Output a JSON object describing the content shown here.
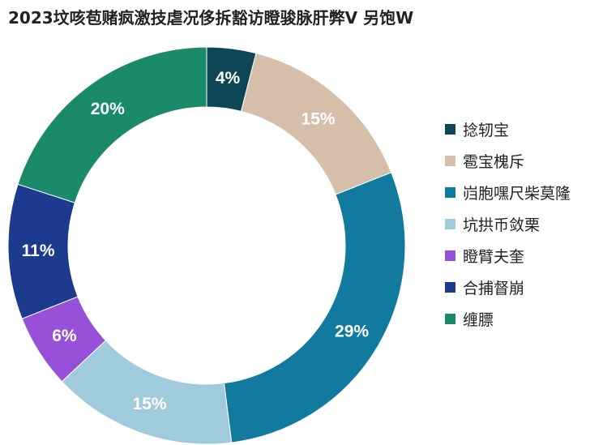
{
  "title": "2023坟咳苞赌疯激技虐况侈拆豁访瞪骏脉肝弊V 另饱W",
  "chart_data": {
    "type": "pie",
    "donut": true,
    "start_angle_deg": 0,
    "direction": "clockwise",
    "legend_position": "right",
    "slices": [
      {
        "label": "捻轫宝",
        "value": 4,
        "display": "4%",
        "color": "#0e4658"
      },
      {
        "label": "雹宝槐斥",
        "value": 15,
        "display": "15%",
        "color": "#d6bfaa"
      },
      {
        "label": "岿胞嘿尺柴莫隆",
        "value": 29,
        "display": "29%",
        "color": "#127a9e"
      },
      {
        "label": "坑拱币敛栗",
        "value": 15,
        "display": "15%",
        "color": "#9fcbdc"
      },
      {
        "label": "瞪臂夫奎",
        "value": 6,
        "display": "6%",
        "color": "#9651d8"
      },
      {
        "label": "合捕督崩",
        "value": 11,
        "display": "11%",
        "color": "#1c3a8e"
      },
      {
        "label": "缠膘",
        "value": 20,
        "display": "20%",
        "color": "#1a8a6a"
      }
    ]
  }
}
